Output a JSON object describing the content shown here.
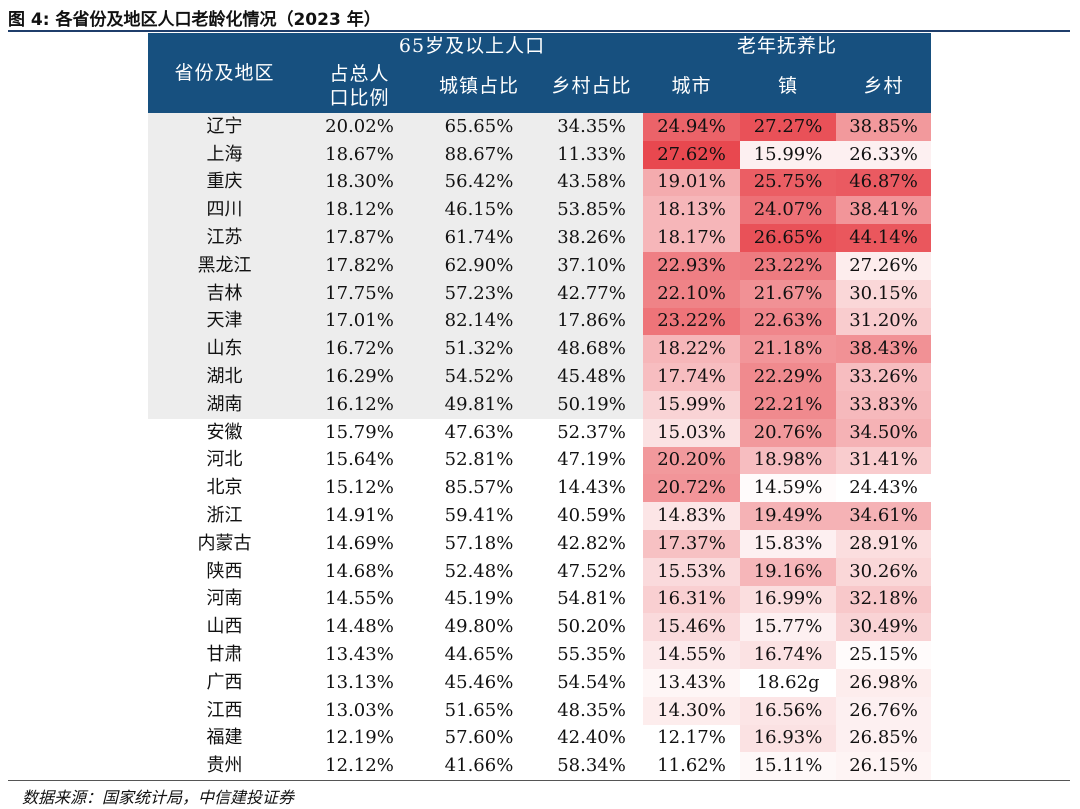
{
  "figure_title": "图 4: 各省份及地区人口老龄化情况（2023 年）",
  "source": "数据来源：国家统计局，中信建投证券",
  "headers": {
    "province": "省份及地区",
    "group_65": "65岁及以上人口",
    "group_dependency": "老年抚养比",
    "share_total": "占总人口比例",
    "share_urban": "城镇占比",
    "share_rural": "乡村占比",
    "dep_city": "城市",
    "dep_town": "镇",
    "dep_village": "乡村"
  },
  "colors": {
    "header_bg": "#17507f",
    "shade_bg": "#ededed",
    "heat_low": "#ffffff",
    "heat_high": "#e8484f"
  },
  "rows": [
    {
      "province": "辽宁",
      "share_total": "20.02%",
      "share_urban": "65.65%",
      "share_rural": "34.35%",
      "city": "24.94%",
      "town": "27.27%",
      "village": "38.85%",
      "city_level": 0.85,
      "town_level": 0.95,
      "village_level": 0.56
    },
    {
      "province": "上海",
      "share_total": "18.67%",
      "share_urban": "88.67%",
      "share_rural": "11.33%",
      "city": "27.62%",
      "town": "15.99%",
      "village": "26.33%",
      "city_level": 1.0,
      "town_level": 0.08,
      "village_level": 0.08
    },
    {
      "province": "重庆",
      "share_total": "18.30%",
      "share_urban": "56.42%",
      "share_rural": "43.58%",
      "city": "19.01%",
      "town": "25.75%",
      "village": "46.87%",
      "city_level": 0.46,
      "town_level": 0.88,
      "village_level": 0.9
    },
    {
      "province": "四川",
      "share_total": "18.12%",
      "share_urban": "46.15%",
      "share_rural": "53.85%",
      "city": "18.13%",
      "town": "24.07%",
      "village": "38.41%",
      "city_level": 0.4,
      "town_level": 0.78,
      "village_level": 0.58
    },
    {
      "province": "江苏",
      "share_total": "17.87%",
      "share_urban": "61.74%",
      "share_rural": "38.26%",
      "city": "18.17%",
      "town": "26.65%",
      "village": "44.14%",
      "city_level": 0.4,
      "town_level": 0.95,
      "village_level": 0.92
    },
    {
      "province": "黑龙江",
      "share_total": "17.82%",
      "share_urban": "62.90%",
      "share_rural": "37.10%",
      "city": "22.93%",
      "town": "23.22%",
      "village": "27.26%",
      "city_level": 0.7,
      "town_level": 0.72,
      "village_level": 0.1
    },
    {
      "province": "吉林",
      "share_total": "17.75%",
      "share_urban": "57.23%",
      "share_rural": "42.77%",
      "city": "22.10%",
      "town": "21.67%",
      "village": "30.15%",
      "city_level": 0.68,
      "town_level": 0.6,
      "village_level": 0.22
    },
    {
      "province": "天津",
      "share_total": "17.01%",
      "share_urban": "82.14%",
      "share_rural": "17.86%",
      "city": "23.22%",
      "town": "22.63%",
      "village": "31.20%",
      "city_level": 0.76,
      "town_level": 0.66,
      "village_level": 0.28
    },
    {
      "province": "山东",
      "share_total": "16.72%",
      "share_urban": "51.32%",
      "share_rural": "48.68%",
      "city": "18.22%",
      "town": "21.18%",
      "village": "38.43%",
      "city_level": 0.4,
      "town_level": 0.58,
      "village_level": 0.6
    },
    {
      "province": "湖北",
      "share_total": "16.29%",
      "share_urban": "54.52%",
      "share_rural": "45.48%",
      "city": "17.74%",
      "town": "22.29%",
      "village": "33.26%",
      "city_level": 0.36,
      "town_level": 0.64,
      "village_level": 0.36
    },
    {
      "province": "湖南",
      "share_total": "16.12%",
      "share_urban": "49.81%",
      "share_rural": "50.19%",
      "city": "15.99%",
      "town": "22.21%",
      "village": "33.83%",
      "city_level": 0.24,
      "town_level": 0.64,
      "village_level": 0.38
    },
    {
      "province": "安徽",
      "share_total": "15.79%",
      "share_urban": "47.63%",
      "share_rural": "52.37%",
      "city": "15.03%",
      "town": "20.76%",
      "village": "34.50%",
      "city_level": 0.16,
      "town_level": 0.56,
      "village_level": 0.42
    },
    {
      "province": "河北",
      "share_total": "15.64%",
      "share_urban": "52.81%",
      "share_rural": "47.19%",
      "city": "20.20%",
      "town": "18.98%",
      "village": "31.41%",
      "city_level": 0.56,
      "town_level": 0.36,
      "village_level": 0.28
    },
    {
      "province": "北京",
      "share_total": "15.12%",
      "share_urban": "85.57%",
      "share_rural": "14.43%",
      "city": "20.72%",
      "town": "14.59%",
      "village": "24.43%",
      "city_level": 0.58,
      "town_level": 0.02,
      "village_level": 0.0
    },
    {
      "province": "浙江",
      "share_total": "14.91%",
      "share_urban": "59.41%",
      "share_rural": "40.59%",
      "city": "14.83%",
      "town": "19.49%",
      "village": "34.61%",
      "city_level": 0.14,
      "town_level": 0.42,
      "village_level": 0.42
    },
    {
      "province": "内蒙古",
      "share_total": "14.69%",
      "share_urban": "57.18%",
      "share_rural": "42.82%",
      "city": "17.37%",
      "town": "15.83%",
      "village": "28.91%",
      "city_level": 0.34,
      "town_level": 0.08,
      "village_level": 0.18
    },
    {
      "province": "陕西",
      "share_total": "14.68%",
      "share_urban": "52.48%",
      "share_rural": "47.52%",
      "city": "15.53%",
      "town": "19.16%",
      "village": "30.26%",
      "city_level": 0.2,
      "town_level": 0.4,
      "village_level": 0.22
    },
    {
      "province": "河南",
      "share_total": "14.55%",
      "share_urban": "45.19%",
      "share_rural": "54.81%",
      "city": "16.31%",
      "town": "16.99%",
      "village": "32.18%",
      "city_level": 0.26,
      "town_level": 0.18,
      "village_level": 0.3
    },
    {
      "province": "山西",
      "share_total": "14.48%",
      "share_urban": "49.80%",
      "share_rural": "50.20%",
      "city": "15.46%",
      "town": "15.77%",
      "village": "30.49%",
      "city_level": 0.2,
      "town_level": 0.08,
      "village_level": 0.24
    },
    {
      "province": "甘肃",
      "share_total": "13.43%",
      "share_urban": "44.65%",
      "share_rural": "55.35%",
      "city": "14.55%",
      "town": "16.74%",
      "village": "25.15%",
      "city_level": 0.12,
      "town_level": 0.16,
      "village_level": 0.02
    },
    {
      "province": "广西",
      "share_total": "13.13%",
      "share_urban": "45.46%",
      "share_rural": "54.54%",
      "city": "13.43%",
      "town": "18.62g",
      "village": "26.98%",
      "city_level": 0.05,
      "town_level": 0.0,
      "village_level": 0.1
    },
    {
      "province": "江西",
      "share_total": "13.03%",
      "share_urban": "51.65%",
      "share_rural": "48.35%",
      "city": "14.30%",
      "town": "16.56%",
      "village": "26.76%",
      "city_level": 0.1,
      "town_level": 0.14,
      "village_level": 0.08
    },
    {
      "province": "福建",
      "share_total": "12.19%",
      "share_urban": "57.60%",
      "share_rural": "42.40%",
      "city": "12.17%",
      "town": "16.93%",
      "village": "26.85%",
      "city_level": 0.0,
      "town_level": 0.16,
      "village_level": 0.08
    },
    {
      "province": "贵州",
      "share_total": "12.12%",
      "share_urban": "41.66%",
      "share_rural": "58.34%",
      "city": "11.62%",
      "town": "15.11%",
      "village": "26.15%",
      "city_level": 0.0,
      "town_level": 0.04,
      "village_level": 0.06
    }
  ]
}
